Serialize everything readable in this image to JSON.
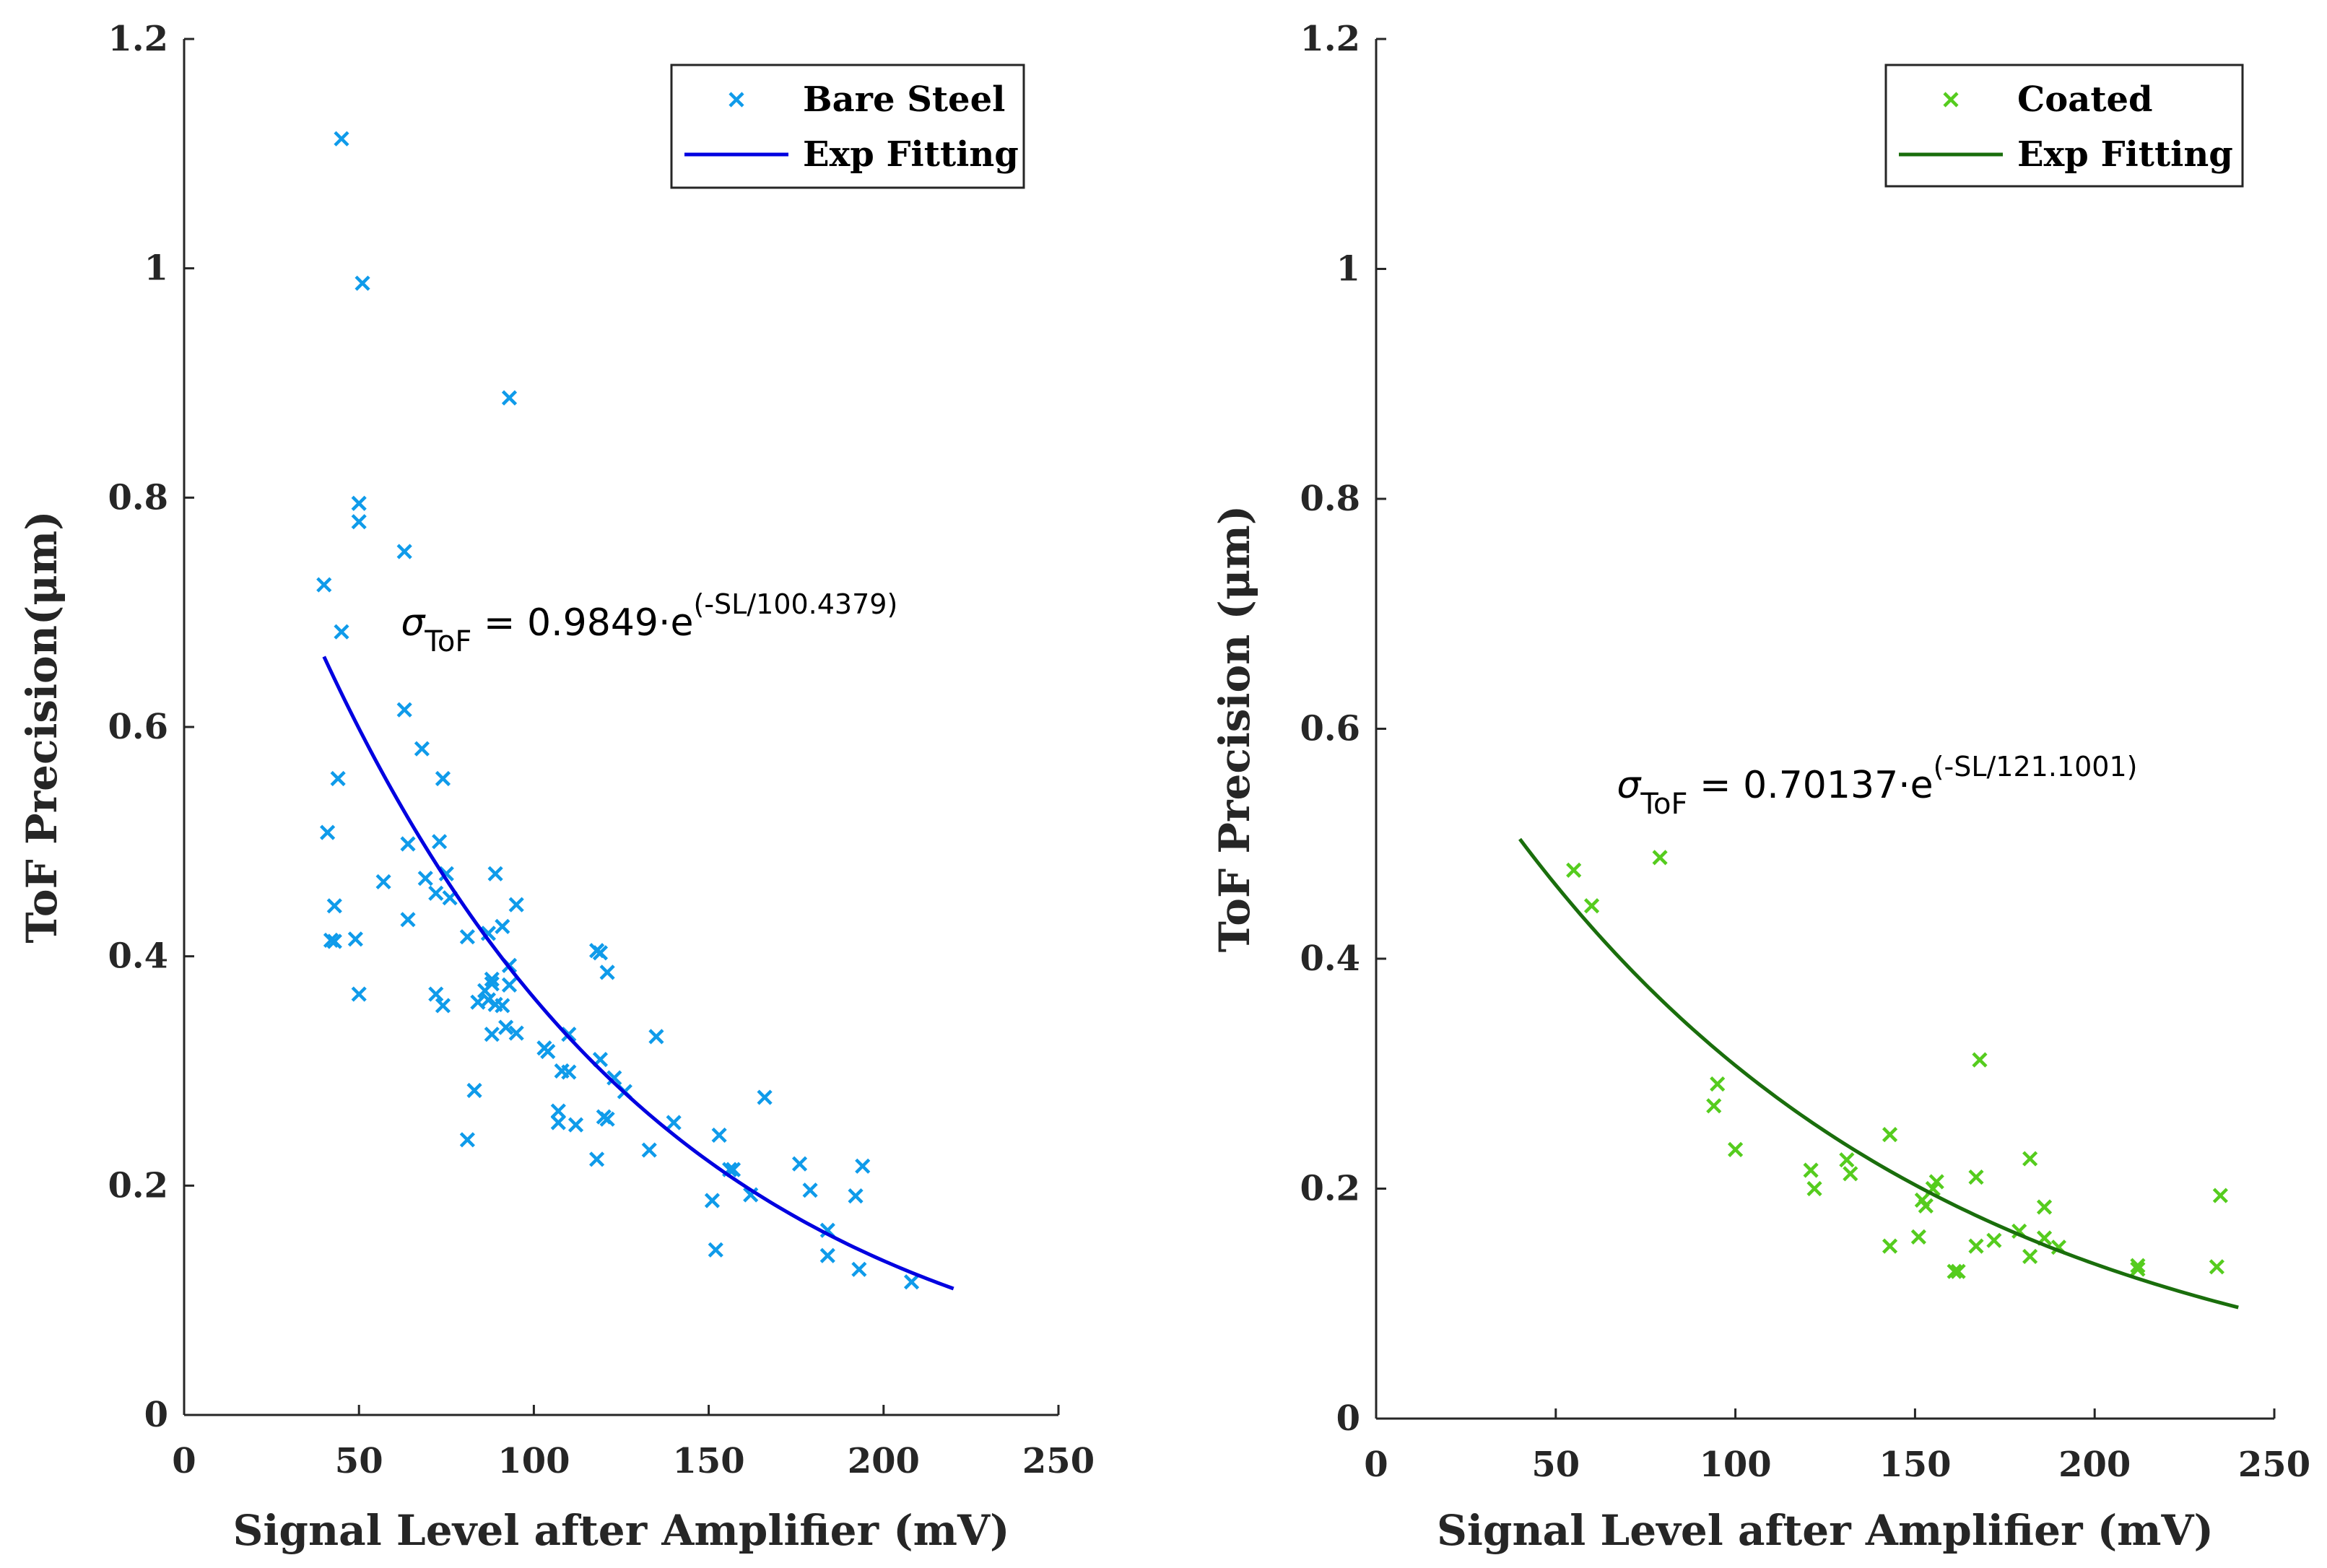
{
  "chart_data": [
    {
      "type": "scatter",
      "title": "",
      "xlabel": "Signal Level after Amplifier (mV)",
      "ylabel": "ToF Precision(μm)",
      "xlim": [
        0,
        250
      ],
      "ylim": [
        0,
        1.2
      ],
      "xticks": [
        0,
        50,
        100,
        150,
        200,
        250
      ],
      "yticks": [
        0,
        0.2,
        0.4,
        0.6,
        0.8,
        1,
        1.2
      ],
      "xtick_labels": [
        "0",
        "50",
        "100",
        "150",
        "200",
        "250"
      ],
      "ytick_labels": [
        "0",
        "0.2",
        "0.4",
        "0.6",
        "0.8",
        "1",
        "1.2"
      ],
      "grid": false,
      "legend_position": "top-right",
      "series": [
        {
          "name": "Bare Steel",
          "kind": "scatter",
          "marker": "x",
          "color": "#0F9BEA",
          "x": [
            45,
            51,
            93,
            50,
            50,
            63,
            40,
            45,
            44,
            63,
            68,
            74,
            73,
            64,
            43,
            41,
            57,
            64,
            69,
            72,
            76,
            75,
            89,
            95,
            43,
            42,
            49,
            50,
            72,
            74,
            81,
            91,
            93,
            87,
            88,
            88,
            93,
            118,
            119,
            121,
            87,
            86,
            84,
            89,
            91,
            95,
            103,
            104,
            110,
            108,
            92,
            88,
            110,
            119,
            123,
            126,
            121,
            120,
            107,
            107,
            112,
            83,
            81,
            118,
            135,
            140,
            133,
            153,
            152,
            156,
            157,
            162,
            166,
            151,
            176,
            179,
            184,
            192,
            194,
            193,
            184,
            208
          ],
          "y": [
            1.113,
            0.987,
            0.887,
            0.795,
            0.779,
            0.753,
            0.724,
            0.683,
            0.555,
            0.615,
            0.581,
            0.555,
            0.5,
            0.498,
            0.444,
            0.508,
            0.465,
            0.432,
            0.468,
            0.455,
            0.451,
            0.472,
            0.472,
            0.445,
            0.413,
            0.414,
            0.415,
            0.367,
            0.367,
            0.357,
            0.417,
            0.426,
            0.375,
            0.42,
            0.38,
            0.376,
            0.392,
            0.405,
            0.403,
            0.386,
            0.362,
            0.37,
            0.36,
            0.358,
            0.357,
            0.333,
            0.32,
            0.317,
            0.332,
            0.3,
            0.338,
            0.332,
            0.299,
            0.31,
            0.294,
            0.282,
            0.258,
            0.26,
            0.265,
            0.255,
            0.253,
            0.283,
            0.24,
            0.223,
            0.33,
            0.255,
            0.231,
            0.244,
            0.144,
            0.214,
            0.214,
            0.192,
            0.277,
            0.187,
            0.219,
            0.196,
            0.161,
            0.191,
            0.217,
            0.127,
            0.139,
            0.116
          ]
        },
        {
          "name": "Exp Fitting",
          "kind": "line",
          "color": "#0000E0",
          "a": 0.9849,
          "b": 100.4379,
          "x_range": [
            40,
            220
          ]
        }
      ],
      "annotation": {
        "prefix": "σ",
        "subscript": "ToF",
        "middle": " = 0.9849·e",
        "superscript": "(-SL/100.4379)",
        "x": 62,
        "y": 0.68
      }
    },
    {
      "type": "scatter",
      "title": "",
      "xlabel": "Signal Level after Amplifier (mV)",
      "ylabel": "ToF Precision (μm)",
      "xlim": [
        0,
        250
      ],
      "ylim": [
        0,
        1.2
      ],
      "xticks": [
        0,
        50,
        100,
        150,
        200,
        250
      ],
      "yticks": [
        0,
        0.2,
        0.4,
        0.6,
        0.8,
        1,
        1.2
      ],
      "xtick_labels": [
        "0",
        "50",
        "100",
        "150",
        "200",
        "250"
      ],
      "ytick_labels": [
        "0",
        "0.2",
        "0.4",
        "0.6",
        "0.8",
        "1",
        "1.2"
      ],
      "grid": false,
      "legend_position": "top-right",
      "series": [
        {
          "name": "Coated",
          "kind": "scatter",
          "marker": "x",
          "color": "#55CC1E",
          "x": [
            55,
            60,
            79,
            95,
            94,
            100,
            121,
            122,
            131,
            132,
            143,
            143,
            151,
            152,
            153,
            155,
            156,
            161,
            162,
            167,
            167,
            168,
            172,
            179,
            182,
            182,
            186,
            186,
            190,
            212,
            212,
            234,
            235
          ],
          "y": [
            0.477,
            0.446,
            0.488,
            0.291,
            0.272,
            0.234,
            0.216,
            0.2,
            0.225,
            0.213,
            0.247,
            0.15,
            0.158,
            0.19,
            0.185,
            0.2,
            0.206,
            0.128,
            0.128,
            0.21,
            0.15,
            0.312,
            0.155,
            0.163,
            0.226,
            0.141,
            0.184,
            0.157,
            0.149,
            0.133,
            0.13,
            0.132,
            0.194
          ]
        },
        {
          "name": "Exp Fitting",
          "kind": "line",
          "color": "#1A6E0C",
          "a": 0.70137,
          "b": 121.1001,
          "x_range": [
            40,
            240
          ]
        }
      ],
      "annotation": {
        "prefix": "σ",
        "subscript": "ToF",
        "middle": " = 0.70137·e",
        "superscript": "(-SL/121.1001)",
        "x": 67,
        "y": 0.54
      }
    }
  ]
}
